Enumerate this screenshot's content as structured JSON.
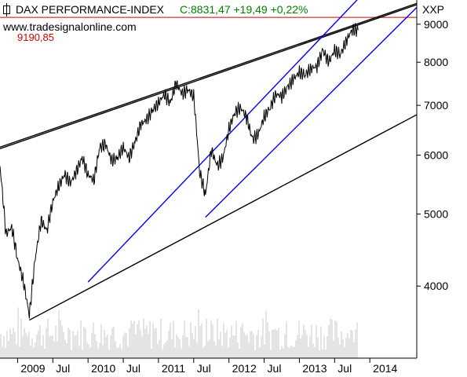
{
  "header": {
    "title": "DAX PERFORMANCE-INDEX",
    "quote": "C:8831,47 +19,49 +0,22%",
    "source": "www.tradesignalonline.com",
    "symbol": "XXP",
    "ref_level_label": "9190,85"
  },
  "colors": {
    "background": "#ffffff",
    "price": "#000000",
    "channel": "#0000ff",
    "trendline": "#000000",
    "ref_line": "#cc0000",
    "quote_text": "#008000",
    "volume": "#c8c8c8",
    "axis": "#000000"
  },
  "chart_data": {
    "type": "line",
    "title": "DAX PERFORMANCE-INDEX",
    "x_ticks": [
      "2009",
      "Jul",
      "2010",
      "Jul",
      "2011",
      "Jul",
      "2012",
      "Jul",
      "2013",
      "Jul",
      "2014"
    ],
    "y_ticks": [
      4000,
      5000,
      6000,
      7000,
      8000,
      9000
    ],
    "xlim": [
      "2008-10",
      "2014-09"
    ],
    "ylim": [
      3200,
      9700
    ],
    "horizontal_line": {
      "value": 9190.85,
      "label": "9190,85"
    },
    "series": [
      {
        "values_by_month": [
          [
            "2008-10",
            5800
          ],
          [
            "2008-11",
            4700
          ],
          [
            "2008-12",
            4800
          ],
          [
            "2009-01",
            4350
          ],
          [
            "2009-02",
            4050
          ],
          [
            "2009-03",
            3650
          ],
          [
            "2009-04",
            4350
          ],
          [
            "2009-05",
            4900
          ],
          [
            "2009-06",
            4750
          ],
          [
            "2009-07",
            5200
          ],
          [
            "2009-08",
            5450
          ],
          [
            "2009-09",
            5650
          ],
          [
            "2009-10",
            5500
          ],
          [
            "2009-11",
            5700
          ],
          [
            "2009-12",
            5950
          ],
          [
            "2010-01",
            5650
          ],
          [
            "2010-02",
            5550
          ],
          [
            "2010-03",
            6150
          ],
          [
            "2010-04",
            6200
          ],
          [
            "2010-05",
            5900
          ],
          [
            "2010-06",
            5950
          ],
          [
            "2010-07",
            6150
          ],
          [
            "2010-08",
            5950
          ],
          [
            "2010-09",
            6250
          ],
          [
            "2010-10",
            6600
          ],
          [
            "2010-11",
            6700
          ],
          [
            "2010-12",
            6900
          ],
          [
            "2011-01",
            7050
          ],
          [
            "2011-02",
            7250
          ],
          [
            "2011-03",
            7050
          ],
          [
            "2011-04",
            7500
          ],
          [
            "2011-05",
            7250
          ],
          [
            "2011-06",
            7350
          ],
          [
            "2011-07",
            7200
          ],
          [
            "2011-08",
            5700
          ],
          [
            "2011-09",
            5300
          ],
          [
            "2011-10",
            6100
          ],
          [
            "2011-11",
            5800
          ],
          [
            "2011-12",
            5950
          ],
          [
            "2012-01",
            6500
          ],
          [
            "2012-02",
            6850
          ],
          [
            "2012-03",
            6950
          ],
          [
            "2012-04",
            6750
          ],
          [
            "2012-05",
            6300
          ],
          [
            "2012-06",
            6400
          ],
          [
            "2012-07",
            6750
          ],
          [
            "2012-08",
            6950
          ],
          [
            "2012-09",
            7250
          ],
          [
            "2012-10",
            7200
          ],
          [
            "2012-11",
            7400
          ],
          [
            "2012-12",
            7600
          ],
          [
            "2013-01",
            7750
          ],
          [
            "2013-02",
            7700
          ],
          [
            "2013-03",
            7850
          ],
          [
            "2013-04",
            7900
          ],
          [
            "2013-05",
            8300
          ],
          [
            "2013-06",
            8000
          ],
          [
            "2013-07",
            8300
          ],
          [
            "2013-08",
            8200
          ],
          [
            "2013-09",
            8550
          ],
          [
            "2013-10",
            8850
          ],
          [
            "2013-11",
            8831.47
          ]
        ]
      }
    ],
    "trend_lines": [
      {
        "color": "black",
        "from": [
          "2008-10",
          6150
        ],
        "to": [
          "2014-09",
          9600
        ]
      },
      {
        "color": "black",
        "from": [
          "2008-10",
          6120
        ],
        "to": [
          "2014-09",
          9560
        ]
      },
      {
        "color": "black",
        "from": [
          "2009-03",
          3600
        ],
        "to": [
          "2014-09",
          6800
        ]
      },
      {
        "color": "blue",
        "from": [
          "2010-01",
          4050
        ],
        "to": [
          "2013-12",
          9920
        ]
      },
      {
        "color": "blue",
        "from": [
          "2011-09",
          4950
        ],
        "to": [
          "2014-09",
          9480
        ]
      }
    ],
    "volume": {
      "shown": true,
      "color": "gray"
    },
    "grid": false
  }
}
